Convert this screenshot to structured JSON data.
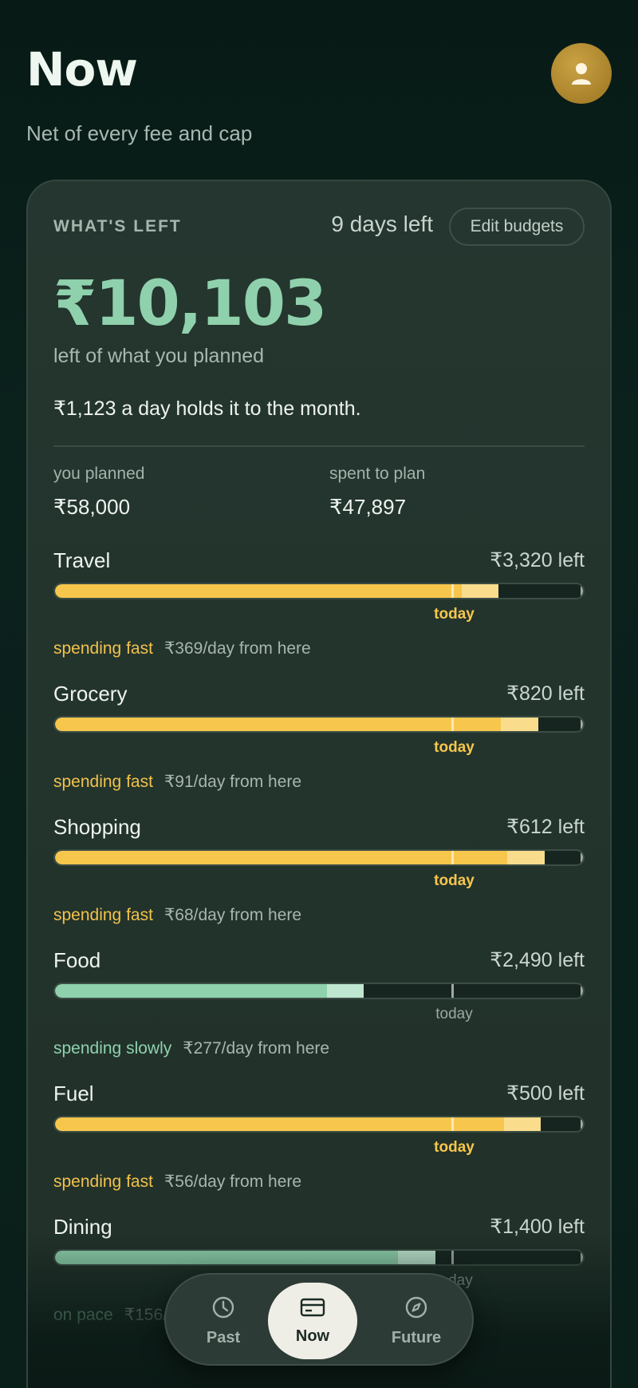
{
  "header": {
    "title": "Now",
    "subtitle": "Net of every fee and cap",
    "avatar_icon": "person-icon"
  },
  "summary": {
    "eyebrow": "WHAT'S LEFT",
    "days_left": "9 days left",
    "edit_label": "Edit budgets",
    "amount": "₹10,103",
    "amount_caption": "left of what you planned",
    "daily_line": "₹1,123 a day holds it to the month.",
    "planned_label": "you planned",
    "planned_value": "₹58,000",
    "spent_label": "spent to plan",
    "spent_value": "₹47,897"
  },
  "today_marker_fraction": 0.75,
  "categories": [
    {
      "name": "Travel",
      "left": "₹3,320 left",
      "spent_fraction": 0.84,
      "pace": "fast",
      "pace_label": "spending fast",
      "rate": "₹369/day from here",
      "today_label": "today"
    },
    {
      "name": "Grocery",
      "left": "₹820 left",
      "spent_fraction": 0.915,
      "pace": "fast",
      "pace_label": "spending fast",
      "rate": "₹91/day from here",
      "today_label": "today"
    },
    {
      "name": "Shopping",
      "left": "₹612 left",
      "spent_fraction": 0.927,
      "pace": "fast",
      "pace_label": "spending fast",
      "rate": "₹68/day from here",
      "today_label": "today"
    },
    {
      "name": "Food",
      "left": "₹2,490 left",
      "spent_fraction": 0.585,
      "pace": "slow",
      "pace_label": "spending slowly",
      "rate": "₹277/day from here",
      "today_label": "today"
    },
    {
      "name": "Fuel",
      "left": "₹500 left",
      "spent_fraction": 0.92,
      "pace": "fast",
      "pace_label": "spending fast",
      "rate": "₹56/day from here",
      "today_label": "today"
    },
    {
      "name": "Dining",
      "left": "₹1,400 left",
      "spent_fraction": 0.72,
      "pace": "slow",
      "pace_label": "on pace",
      "rate": "₹156/day from here",
      "today_label": "today"
    }
  ],
  "nav": [
    {
      "label": "Past",
      "icon": "clock-icon"
    },
    {
      "label": "Now",
      "icon": "card-icon",
      "active": true
    },
    {
      "label": "Future",
      "icon": "compass-icon"
    }
  ],
  "colors": {
    "fast": "#f7c64c",
    "slow": "#8fd1ad",
    "background": "#0a1f1a"
  }
}
